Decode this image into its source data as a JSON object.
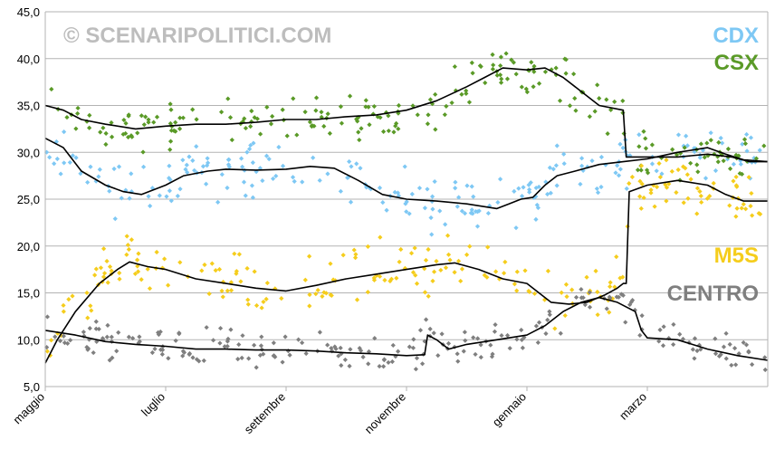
{
  "chart_data": {
    "type": "scatter",
    "watermark": "© SCENARIPOLITICI.COM",
    "ylim": [
      5,
      45
    ],
    "yticks": [
      5,
      10,
      15,
      20,
      25,
      30,
      35,
      40,
      45
    ],
    "ytick_labels": [
      "5,0",
      "10,0",
      "15,0",
      "20,0",
      "25,0",
      "30,0",
      "35,0",
      "40,0",
      "45,0"
    ],
    "xlim": [
      0,
      12
    ],
    "x_tick_positions": [
      0,
      2,
      4,
      6,
      8,
      10
    ],
    "x_tick_labels": [
      "maggio",
      "luglio",
      "settembre",
      "novembre",
      "gennaio",
      "marzo"
    ],
    "grid": "horizontal",
    "legend_position": "right",
    "series": [
      {
        "name": "CDX",
        "color": "#7ec8f4",
        "trend": [
          [
            0,
            31.5
          ],
          [
            0.3,
            30.5
          ],
          [
            0.6,
            28
          ],
          [
            1,
            26.5
          ],
          [
            1.3,
            25.8
          ],
          [
            1.6,
            25.5
          ],
          [
            2,
            26.5
          ],
          [
            2.3,
            27.5
          ],
          [
            2.7,
            28
          ],
          [
            3,
            28.2
          ],
          [
            3.5,
            28.1
          ],
          [
            4,
            28.2
          ],
          [
            4.4,
            28.5
          ],
          [
            4.8,
            28.3
          ],
          [
            5.2,
            27
          ],
          [
            5.6,
            25.5
          ],
          [
            6,
            25
          ],
          [
            6.5,
            24.8
          ],
          [
            7,
            24.5
          ],
          [
            7.5,
            24
          ],
          [
            7.7,
            24.5
          ],
          [
            7.9,
            25
          ],
          [
            8.1,
            25.2
          ],
          [
            8.3,
            26.5
          ],
          [
            8.5,
            27.5
          ],
          [
            8.8,
            28
          ],
          [
            9.2,
            28.7
          ],
          [
            9.6,
            29
          ],
          [
            10,
            29.3
          ],
          [
            10.5,
            30
          ],
          [
            11,
            30.5
          ],
          [
            11.3,
            29.8
          ],
          [
            11.6,
            29.2
          ],
          [
            12,
            29
          ]
        ],
        "spread": 2.2
      },
      {
        "name": "CSX",
        "color": "#5a9a27",
        "trend": [
          [
            0,
            35
          ],
          [
            0.3,
            34.5
          ],
          [
            0.6,
            33.5
          ],
          [
            1,
            33
          ],
          [
            1.5,
            32.5
          ],
          [
            2,
            32.8
          ],
          [
            2.5,
            33
          ],
          [
            3,
            33
          ],
          [
            3.5,
            33.2
          ],
          [
            4,
            33.5
          ],
          [
            4.5,
            33.5
          ],
          [
            5,
            33.8
          ],
          [
            5.5,
            34
          ],
          [
            6,
            34.5
          ],
          [
            6.5,
            35.5
          ],
          [
            7,
            37
          ],
          [
            7.3,
            38
          ],
          [
            7.6,
            39
          ],
          [
            8,
            38.8
          ],
          [
            8.3,
            39
          ],
          [
            8.6,
            38
          ],
          [
            8.9,
            36.5
          ],
          [
            9.2,
            35
          ],
          [
            9.6,
            34.5
          ],
          [
            9.65,
            29.5
          ],
          [
            10,
            29.5
          ],
          [
            10.5,
            29.5
          ],
          [
            11,
            29.8
          ],
          [
            11.4,
            29.5
          ],
          [
            11.7,
            29
          ],
          [
            12,
            29
          ]
        ],
        "spread": 1.8
      },
      {
        "name": "M5S",
        "color": "#f5cd1c",
        "trend": [
          [
            0,
            7.5
          ],
          [
            0.2,
            10
          ],
          [
            0.5,
            13
          ],
          [
            0.9,
            16
          ],
          [
            1.2,
            17.5
          ],
          [
            1.4,
            18.3
          ],
          [
            1.7,
            17.8
          ],
          [
            2,
            17.5
          ],
          [
            2.5,
            16.5
          ],
          [
            3,
            16
          ],
          [
            3.5,
            15.5
          ],
          [
            4,
            15.2
          ],
          [
            4.5,
            15.8
          ],
          [
            5,
            16.5
          ],
          [
            5.5,
            17
          ],
          [
            6,
            17.5
          ],
          [
            6.5,
            18
          ],
          [
            6.8,
            18.2
          ],
          [
            7.2,
            17.5
          ],
          [
            7.6,
            16.5
          ],
          [
            8,
            16
          ],
          [
            8.2,
            15
          ],
          [
            8.4,
            14
          ],
          [
            8.7,
            13.8
          ],
          [
            9,
            14
          ],
          [
            9.3,
            14.8
          ],
          [
            9.5,
            15.5
          ],
          [
            9.6,
            16
          ],
          [
            9.65,
            16
          ],
          [
            9.7,
            25.8
          ],
          [
            10,
            26.5
          ],
          [
            10.5,
            27
          ],
          [
            11,
            26.5
          ],
          [
            11.3,
            25.5
          ],
          [
            11.6,
            24.8
          ],
          [
            12,
            24.8
          ]
        ],
        "spread": 2.3
      },
      {
        "name": "CENTRO",
        "color": "#7f7f7f",
        "trend": [
          [
            0,
            11
          ],
          [
            0.5,
            10.5
          ],
          [
            1,
            9.8
          ],
          [
            1.5,
            9.5
          ],
          [
            2,
            9.3
          ],
          [
            2.5,
            9
          ],
          [
            3,
            9
          ],
          [
            3.5,
            8.9
          ],
          [
            4,
            8.9
          ],
          [
            4.5,
            8.8
          ],
          [
            5,
            8.6
          ],
          [
            5.5,
            8.5
          ],
          [
            6,
            8.3
          ],
          [
            6.3,
            8.4
          ],
          [
            6.35,
            10.5
          ],
          [
            6.5,
            10
          ],
          [
            6.7,
            9
          ],
          [
            7,
            9.5
          ],
          [
            7.5,
            10
          ],
          [
            8,
            10.5
          ],
          [
            8.3,
            11.5
          ],
          [
            8.6,
            13
          ],
          [
            8.9,
            14
          ],
          [
            9.2,
            14.5
          ],
          [
            9.5,
            14
          ],
          [
            9.8,
            13
          ],
          [
            9.9,
            11
          ],
          [
            10,
            10.2
          ],
          [
            10.5,
            10
          ],
          [
            11,
            9
          ],
          [
            11.5,
            8.3
          ],
          [
            12,
            7.8
          ]
        ],
        "spread": 1.6
      }
    ]
  }
}
